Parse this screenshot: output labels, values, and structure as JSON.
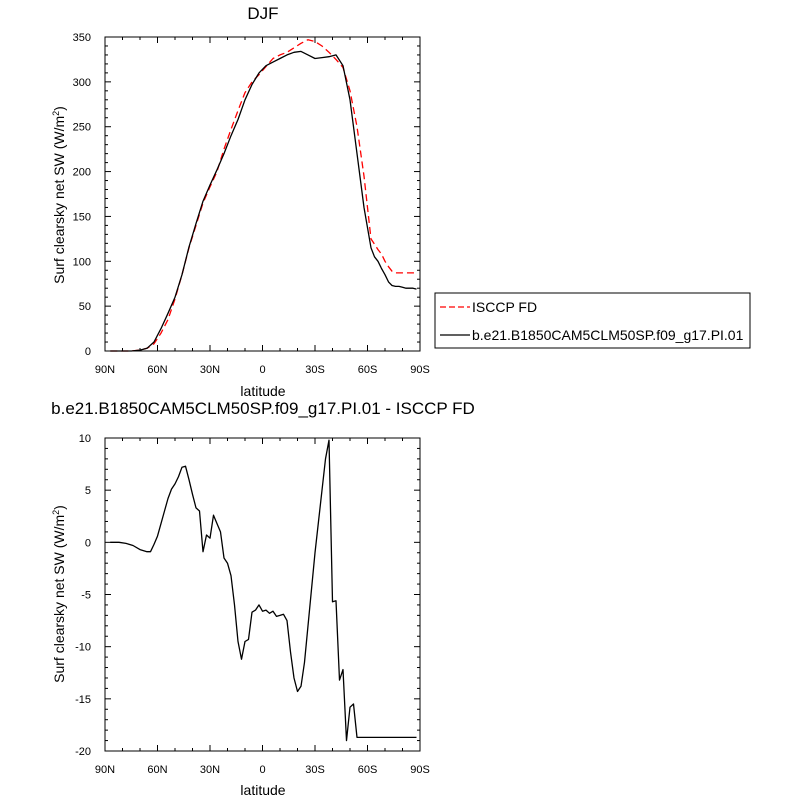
{
  "chart_data": [
    {
      "type": "line",
      "title": "DJF",
      "xlabel": "latitude",
      "ylabel": "Surf clearsky net SW (W/m",
      "ylabel_sup": "2",
      "ylabel_close": ")",
      "xlim": [
        90,
        -90
      ],
      "ylim": [
        0,
        350
      ],
      "x_ticks": [
        90,
        60,
        30,
        0,
        -30,
        -60,
        -90
      ],
      "x_tick_labels": [
        "90N",
        "60N",
        "30N",
        "0",
        "30S",
        "60S",
        "90S"
      ],
      "y_ticks": [
        0,
        50,
        100,
        150,
        200,
        250,
        300,
        350
      ],
      "y_tick_labels": [
        "0",
        "50",
        "100",
        "150",
        "200",
        "250",
        "300",
        "350"
      ],
      "legend_position": "right",
      "series": [
        {
          "name": "ISCCP FD",
          "color": "#ff0000",
          "dash": "dashed",
          "x": [
            87,
            80,
            75,
            70,
            66,
            62,
            58,
            54,
            50,
            46,
            42,
            38,
            34,
            30,
            26,
            22,
            18,
            14,
            10,
            6,
            2,
            -2,
            -6,
            -10,
            -14,
            -18,
            -22,
            -26,
            -30,
            -34,
            -38,
            -42,
            -46,
            -50,
            -54,
            -58,
            -62,
            -64,
            -66,
            -68,
            -70,
            -72,
            -74,
            -76,
            -78,
            -80,
            -82,
            -84,
            -86,
            -88
          ],
          "values": [
            0,
            0,
            0,
            1,
            3,
            8,
            20,
            35,
            58,
            85,
            115,
            140,
            165,
            183,
            200,
            225,
            247,
            268,
            288,
            300,
            308,
            317,
            326,
            330,
            333,
            338,
            343,
            347,
            345,
            340,
            333,
            325,
            316,
            290,
            250,
            195,
            125,
            119,
            113,
            108,
            100,
            94,
            89,
            87,
            87,
            87,
            87,
            87,
            87,
            87
          ]
        },
        {
          "name": "b.e21.B1850CAM5CLM50SP.f09_g17.PI.01",
          "color": "#000000",
          "dash": "solid",
          "x": [
            87,
            80,
            75,
            70,
            66,
            62,
            58,
            54,
            50,
            46,
            42,
            38,
            34,
            30,
            26,
            22,
            18,
            14,
            10,
            6,
            2,
            -2,
            -6,
            -10,
            -14,
            -18,
            -22,
            -26,
            -30,
            -34,
            -38,
            -42,
            -46,
            -50,
            -54,
            -58,
            -62,
            -64,
            -66,
            -68,
            -70,
            -72,
            -74,
            -76,
            -78,
            -80,
            -82,
            -84,
            -86,
            -88
          ],
          "values": [
            0,
            0,
            0,
            1,
            3,
            10,
            25,
            42,
            60,
            85,
            116,
            142,
            167,
            185,
            202,
            220,
            240,
            258,
            280,
            297,
            310,
            318,
            322,
            326,
            330,
            333,
            334,
            330,
            326,
            327,
            328,
            330,
            318,
            280,
            220,
            160,
            115,
            105,
            100,
            92,
            85,
            77,
            73,
            72,
            72,
            71,
            70,
            70,
            70,
            69
          ]
        }
      ]
    },
    {
      "type": "line",
      "title": "b.e21.B1850CAM5CLM50SP.f09_g17.PI.01 - ISCCP FD",
      "xlabel": "latitude",
      "ylabel": "Surf clearsky net SW (W/m",
      "ylabel_sup": "2",
      "ylabel_close": ")",
      "xlim": [
        90,
        -90
      ],
      "ylim": [
        -20,
        10
      ],
      "x_ticks": [
        90,
        60,
        30,
        0,
        -30,
        -60,
        -90
      ],
      "x_tick_labels": [
        "90N",
        "60N",
        "30N",
        "0",
        "30S",
        "60S",
        "90S"
      ],
      "y_ticks": [
        -20,
        -15,
        -10,
        -5,
        0,
        5,
        10
      ],
      "y_tick_labels": [
        "-20",
        "-15",
        "-10",
        "-5",
        "0",
        "5",
        "10"
      ],
      "series": [
        {
          "name": "",
          "color": "#000000",
          "dash": "solid",
          "x": [
            87,
            82,
            78,
            74,
            70,
            66,
            64,
            62,
            60,
            58,
            56,
            54,
            52,
            50,
            48,
            46,
            44,
            42,
            40,
            38,
            36,
            34,
            32,
            30,
            28,
            26,
            24,
            22,
            20,
            18,
            16,
            14,
            12,
            10,
            8,
            6,
            4,
            2,
            0,
            -2,
            -4,
            -6,
            -8,
            -10,
            -12,
            -14,
            -16,
            -18,
            -20,
            -22,
            -24,
            -26,
            -28,
            -30,
            -32,
            -34,
            -36,
            -38,
            -40,
            -42,
            -44,
            -46,
            -48,
            -50,
            -52,
            -54,
            -56,
            -58,
            -60,
            -62,
            -64,
            -66,
            -68,
            -70,
            -72,
            -74,
            -76,
            -78,
            -80,
            -82,
            -84,
            -86,
            -88
          ],
          "values": [
            0,
            0,
            -0.1,
            -0.3,
            -0.7,
            -0.9,
            -0.9,
            -0.2,
            0.6,
            1.8,
            3.0,
            4.2,
            5.1,
            5.6,
            6.3,
            7.2,
            7.3,
            6.0,
            4.6,
            3.3,
            3.0,
            -0.9,
            0.7,
            0.4,
            2.6,
            1.8,
            1.0,
            -1.5,
            -2.0,
            -3.2,
            -6.0,
            -9.5,
            -11.2,
            -9.5,
            -9.3,
            -6.7,
            -6.5,
            -6.0,
            -6.6,
            -6.5,
            -6.8,
            -6.6,
            -7.1,
            -7.0,
            -6.9,
            -7.5,
            -10.5,
            -13.0,
            -14.3,
            -13.8,
            -11.5,
            -8.0,
            -4.5,
            -1.0,
            2.0,
            5.0,
            8.0,
            9.8,
            -5.7,
            -5.6,
            -13.2,
            -12.2,
            -19.0,
            -15.8,
            -15.5,
            -18.7,
            -18.7,
            -18.7,
            -18.7,
            -18.7,
            -18.7,
            -18.7,
            -18.7,
            -18.7,
            -18.7,
            -18.7,
            -18.7,
            -18.7,
            -18.7,
            -18.7,
            -18.7,
            -18.7,
            -18.7
          ]
        }
      ]
    }
  ]
}
